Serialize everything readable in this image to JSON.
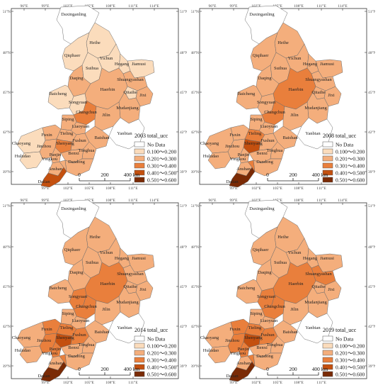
{
  "lon_ticks": [
    "96°E",
    "99°E",
    "102°E",
    "105°E",
    "108°E",
    "111°E",
    "114°E"
  ],
  "lon_ticks_bottom": [
    "99°E",
    "102°E",
    "105°E",
    "108°E",
    "111°E"
  ],
  "lat_ticks": [
    "51°N",
    "48°N",
    "45°N",
    "42°N",
    "39°N"
  ],
  "scale": {
    "labels": [
      "0",
      "200",
      "400 km"
    ]
  },
  "legend": {
    "items": [
      {
        "label": "No Data",
        "color": "#ffffff"
      },
      {
        "label": "0.100～0.200",
        "color": "#fbdcbc"
      },
      {
        "label": "0.201～0.300",
        "color": "#f4ae7c"
      },
      {
        "label": "0.301～0.400",
        "color": "#e97f3c"
      },
      {
        "label": "0.401～0.500",
        "color": "#c4500f"
      },
      {
        "label": "0.501～0.600",
        "color": "#7a2a05"
      }
    ]
  },
  "cities": [
    "Daxinganling",
    "Heihe",
    "Qiqihaer",
    "Yichun",
    "Hegang",
    "Jiamusi",
    "Suihua",
    "Shuangyashan",
    "Daqing",
    "Qitaihe",
    "Jixi",
    "Baicheng",
    "Haerbin",
    "Songyuan",
    "Mudanjiang",
    "Changchun",
    "Jilin",
    "Siping",
    "Liaoyuan",
    "Yanbian",
    "Fuxin",
    "Tieling",
    "Chaoyang",
    "Shenyang",
    "Fushun",
    "Jinzhou",
    "Panjin",
    "Baishan",
    "Huludao",
    "Yingkou",
    "Benxi",
    "Tonghua",
    "Dandong",
    "Anshan",
    "Dalian"
  ],
  "panels": [
    {
      "title": "2003 total_ucc",
      "levels": [
        0,
        1,
        1,
        1,
        1,
        1,
        1,
        2,
        2,
        1,
        2,
        1,
        2,
        1,
        2,
        3,
        2,
        2,
        2,
        0,
        2,
        2,
        1,
        3,
        2,
        2,
        2,
        2,
        1,
        2,
        2,
        2,
        2,
        2,
        4
      ]
    },
    {
      "title": "2008 total_ucc",
      "levels": [
        0,
        2,
        2,
        2,
        2,
        2,
        2,
        2,
        2,
        2,
        2,
        2,
        3,
        2,
        2,
        3,
        2,
        2,
        2,
        0,
        2,
        3,
        2,
        4,
        2,
        2,
        2,
        2,
        2,
        2,
        2,
        2,
        2,
        3,
        5
      ]
    },
    {
      "title": "2014 total_ucc",
      "levels": [
        0,
        2,
        2,
        2,
        2,
        2,
        2,
        2,
        2,
        2,
        2,
        2,
        3,
        3,
        2,
        3,
        2,
        2,
        2,
        0,
        3,
        3,
        2,
        4,
        3,
        3,
        3,
        2,
        2,
        2,
        2,
        2,
        2,
        3,
        5
      ]
    },
    {
      "title": "2019 total_ucc",
      "levels": [
        0,
        2,
        2,
        2,
        2,
        2,
        2,
        3,
        2,
        2,
        2,
        2,
        3,
        3,
        2,
        3,
        2,
        2,
        2,
        0,
        3,
        3,
        2,
        4,
        3,
        3,
        3,
        2,
        2,
        2,
        2,
        2,
        2,
        3,
        5
      ]
    }
  ]
}
